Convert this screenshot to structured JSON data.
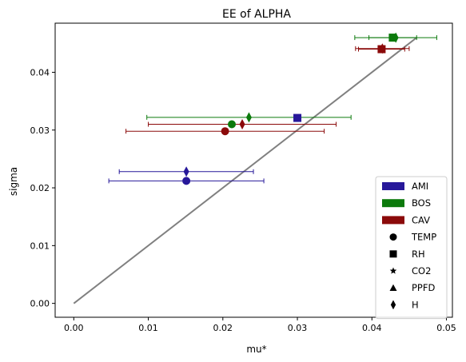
{
  "chart_data": {
    "type": "scatter",
    "title": "EE of ALPHA",
    "xlabel": "mu*",
    "ylabel": "sigma",
    "xlim": [
      -0.0025,
      0.0508
    ],
    "ylim": [
      -0.0024,
      0.0485
    ],
    "xticks": [
      0.0,
      0.01,
      0.02,
      0.03,
      0.04,
      0.05
    ],
    "xtick_labels": [
      "0.00",
      "0.01",
      "0.02",
      "0.03",
      "0.04",
      "0.05"
    ],
    "yticks": [
      0.0,
      0.01,
      0.02,
      0.03,
      0.04
    ],
    "ytick_labels": [
      "0.00",
      "0.01",
      "0.02",
      "0.03",
      "0.04"
    ],
    "grid": false,
    "legend_position": "lower-right",
    "reference_line": {
      "x": [
        0.0,
        0.046
      ],
      "y": [
        0.0,
        0.046
      ],
      "color": "#808080"
    },
    "groups": [
      {
        "name": "AMI",
        "color": "#27189a"
      },
      {
        "name": "BOS",
        "color": "#0c7a0c"
      },
      {
        "name": "CAV",
        "color": "#8b0a0a"
      }
    ],
    "marker_types": [
      {
        "name": "TEMP",
        "marker": "circle"
      },
      {
        "name": "RH",
        "marker": "square"
      },
      {
        "name": "CO2",
        "marker": "star"
      },
      {
        "name": "PPFD",
        "marker": "triangle"
      },
      {
        "name": "H",
        "marker": "diamond"
      }
    ],
    "points": [
      {
        "group": "AMI",
        "variable": "TEMP",
        "x": 0.0151,
        "y": 0.0212,
        "xerr": 0.0104
      },
      {
        "group": "AMI",
        "variable": "H",
        "x": 0.0151,
        "y": 0.0228,
        "xerr": 0.009
      },
      {
        "group": "AMI",
        "variable": "RH",
        "x": 0.03,
        "y": 0.0321,
        "xerr": 0.0
      },
      {
        "group": "BOS",
        "variable": "TEMP",
        "x": 0.0212,
        "y": 0.031,
        "xerr": 0.0
      },
      {
        "group": "BOS",
        "variable": "H",
        "x": 0.0235,
        "y": 0.0322,
        "xerr": 0.0137
      },
      {
        "group": "BOS",
        "variable": "RH",
        "x": 0.0428,
        "y": 0.046,
        "xerr": 0.0032
      },
      {
        "group": "BOS",
        "variable": "H",
        "x": 0.0432,
        "y": 0.046,
        "xerr": 0.0055
      },
      {
        "group": "CAV",
        "variable": "TEMP",
        "x": 0.0203,
        "y": 0.0298,
        "xerr": 0.0133
      },
      {
        "group": "CAV",
        "variable": "H",
        "x": 0.0226,
        "y": 0.031,
        "xerr": 0.0126
      },
      {
        "group": "CAV",
        "variable": "RH",
        "x": 0.0413,
        "y": 0.044,
        "xerr": 0.0031
      },
      {
        "group": "CAV",
        "variable": "H",
        "x": 0.0414,
        "y": 0.0441,
        "xerr": 0.0036
      }
    ]
  }
}
